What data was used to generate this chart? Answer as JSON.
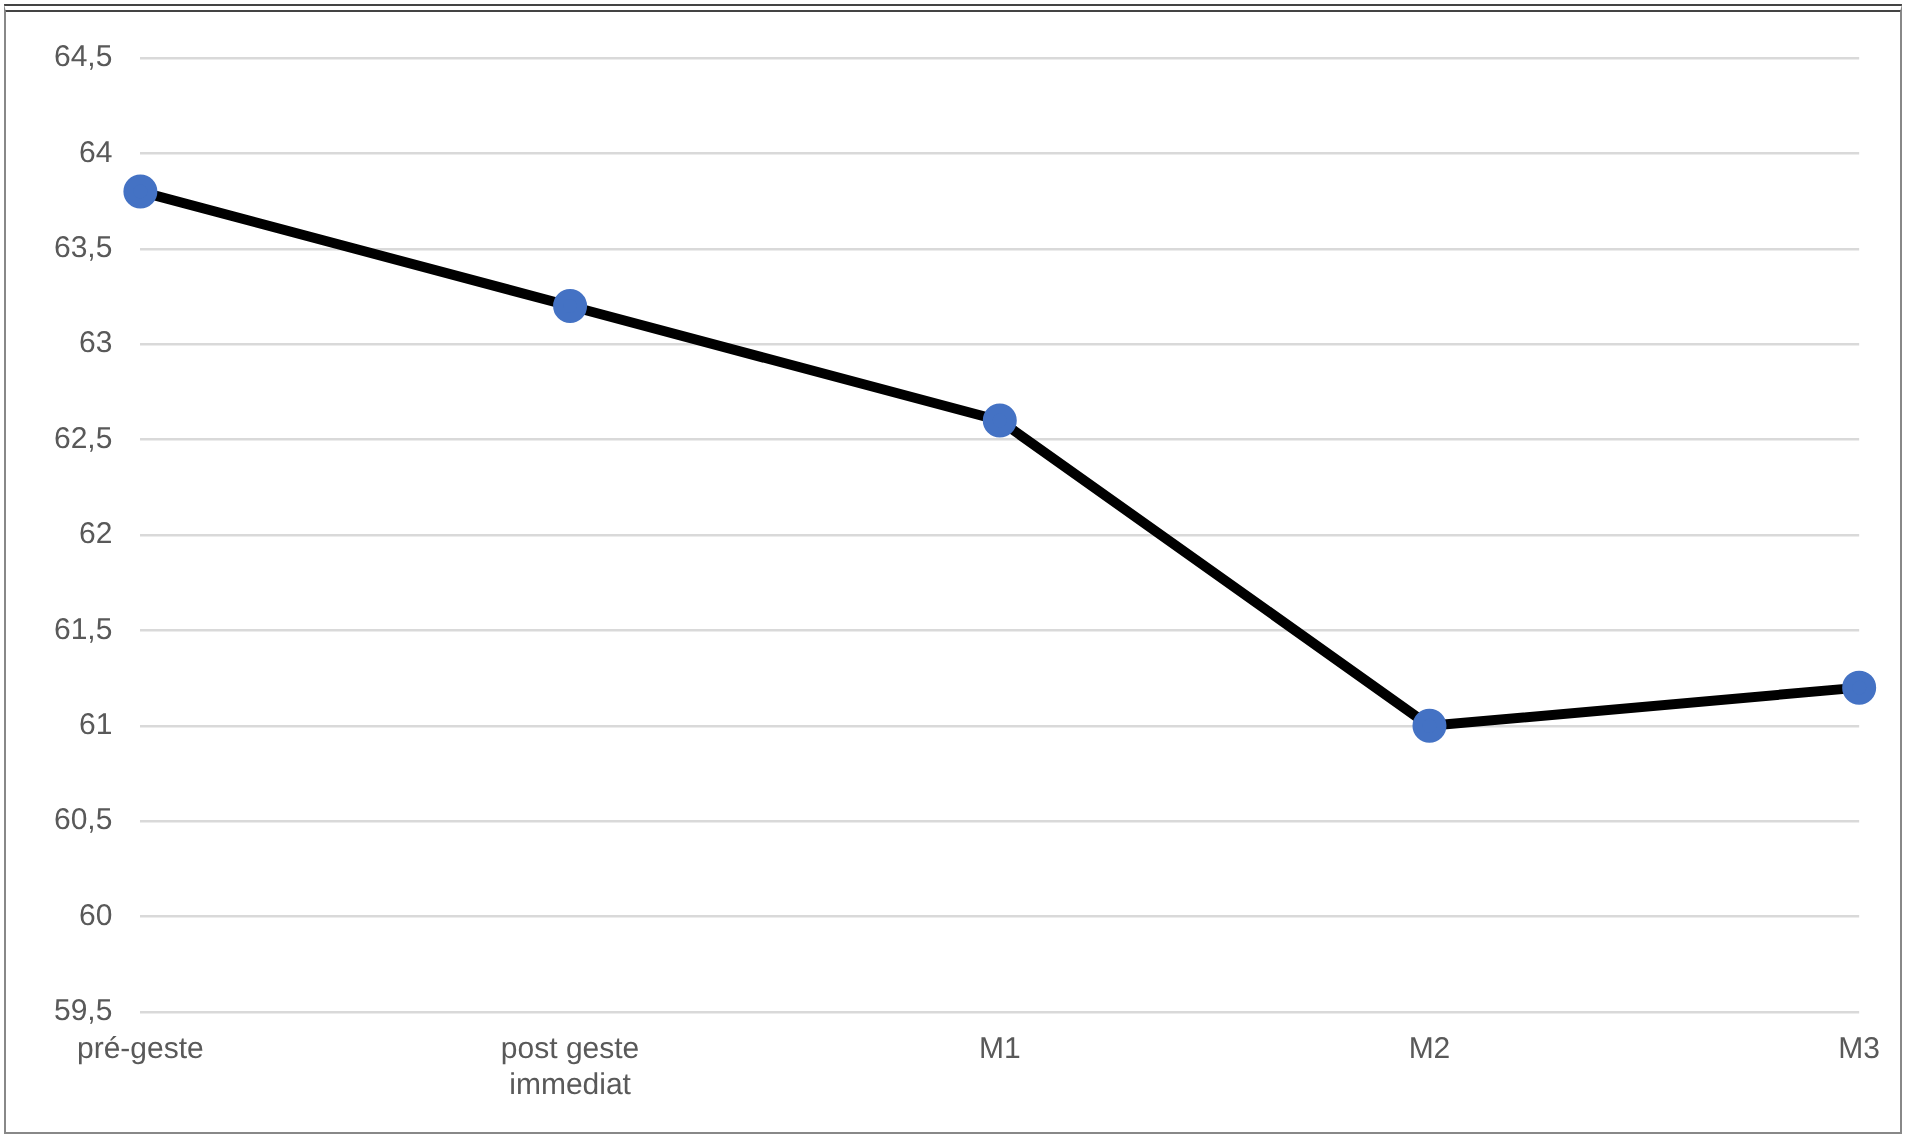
{
  "chart_data": {
    "type": "line",
    "categories": [
      "pré-geste",
      "post geste immediat",
      "M1",
      "M2",
      "M3"
    ],
    "series": [
      {
        "color": "#000000",
        "colors": [
          "#4472c4",
          "#4472c4",
          "#4472c4",
          "#4472c4",
          "#4472c4"
        ],
        "values": [
          63.8,
          63.2,
          62.6,
          61.0,
          61.2
        ]
      }
    ],
    "ylim": [
      59.5,
      64.5
    ],
    "yticks": [
      {
        "value": 59.5,
        "label": "59,5"
      },
      {
        "value": 60,
        "label": "60"
      },
      {
        "value": 60.5,
        "label": "60,5"
      },
      {
        "value": 61,
        "label": "61"
      },
      {
        "value": 61.5,
        "label": "61,5"
      },
      {
        "value": 62,
        "label": "62"
      },
      {
        "value": 62.5,
        "label": "62,5"
      },
      {
        "value": 63,
        "label": "63"
      },
      {
        "value": 63.5,
        "label": "63,5"
      },
      {
        "value": 64,
        "label": "64"
      },
      {
        "value": 64.5,
        "label": "64,5"
      }
    ],
    "grid": "y",
    "legend": false,
    "marker": "circle",
    "line_style": "solid"
  }
}
